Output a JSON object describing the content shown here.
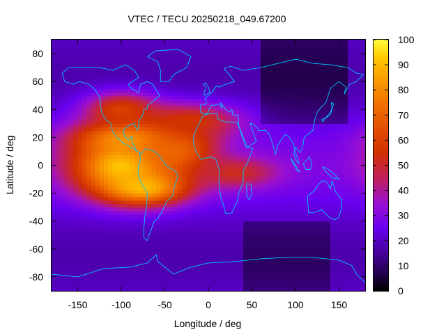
{
  "chart_data": {
    "type": "heatmap",
    "title": "VTEC / TECU 20250218_049.67200",
    "xlabel": "Longitude / deg",
    "ylabel": "Latitude / deg",
    "xlim": [
      -180,
      180
    ],
    "ylim": [
      -90,
      90
    ],
    "x_ticks": [
      -150,
      -100,
      -50,
      0,
      50,
      100,
      150
    ],
    "y_ticks": [
      -80,
      -60,
      -40,
      -20,
      0,
      20,
      40,
      60,
      80
    ],
    "colorbar": {
      "range": [
        0,
        100
      ],
      "ticks": [
        0,
        10,
        20,
        30,
        40,
        50,
        60,
        70,
        80,
        90,
        100
      ],
      "colormap": "black-purple-red-orange-yellow"
    },
    "grid_resolution_deg": [
      5,
      2.5
    ],
    "features": [
      {
        "name": "equatorial-anomaly-max",
        "lon": -95,
        "lat": 0,
        "lon_spread": 42,
        "lat_spread": 14,
        "tec": 95
      },
      {
        "name": "north-crest",
        "lon": -85,
        "lat": 20,
        "lon_spread": 45,
        "lat_spread": 9,
        "tec": 88
      },
      {
        "name": "south-crest",
        "lon": -75,
        "lat": -15,
        "lon_spread": 35,
        "lat_spread": 9,
        "tec": 92
      },
      {
        "name": "atlantic-east",
        "lon": -40,
        "lat": 10,
        "lon_spread": 30,
        "lat_spread": 12,
        "tec": 72
      },
      {
        "name": "north-atlantic-band",
        "lon": -20,
        "lat": 32,
        "lon_spread": 40,
        "lat_spread": 9,
        "tec": 56
      },
      {
        "name": "central-africa-tongue",
        "lon": 30,
        "lat": -5,
        "lon_spread": 35,
        "lat_spread": 8,
        "tec": 52
      },
      {
        "name": "north-america-high",
        "lon": -100,
        "lat": 40,
        "lon_spread": 30,
        "lat_spread": 9,
        "tec": 60
      }
    ],
    "background_tec": 25,
    "overlay": "coastlines (cyan)"
  }
}
